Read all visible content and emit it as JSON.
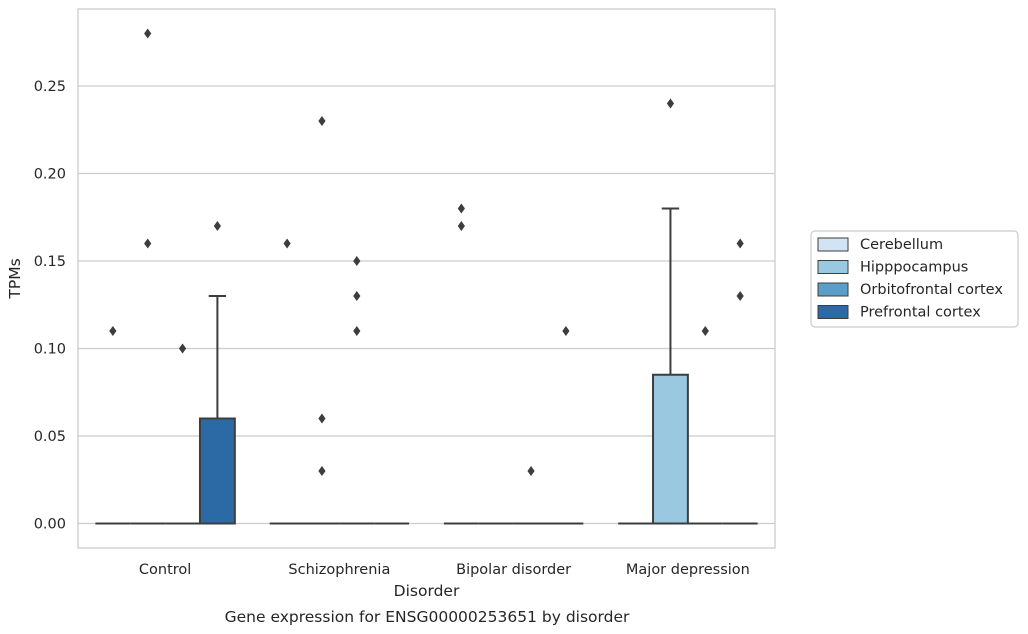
{
  "caption": "Gene expression for ENSG00000253651 by disorder",
  "chart_data": {
    "type": "box",
    "xlabel": "Disorder",
    "ylabel": "TPMs",
    "ylim": [
      -0.014,
      0.294
    ],
    "yticks": [
      0.0,
      0.05,
      0.1,
      0.15,
      0.2,
      0.25
    ],
    "ytick_labels": [
      "0.00",
      "0.05",
      "0.10",
      "0.15",
      "0.20",
      "0.25"
    ],
    "grid": true,
    "legend_position": "right",
    "categories": [
      "Control",
      "Schizophrenia",
      "Bipolar disorder",
      "Major depression"
    ],
    "series": [
      {
        "name": "Cerebellum",
        "color": "#d2e3f3",
        "boxes": [
          {
            "q1": 0,
            "median": 0,
            "q3": 0,
            "whisker_low": 0,
            "whisker_high": 0,
            "outliers": [
              0.11
            ]
          },
          {
            "q1": 0,
            "median": 0,
            "q3": 0,
            "whisker_low": 0,
            "whisker_high": 0,
            "outliers": [
              0.16
            ]
          },
          {
            "q1": 0,
            "median": 0,
            "q3": 0,
            "whisker_low": 0,
            "whisker_high": 0,
            "outliers": [
              0.17,
              0.18
            ]
          },
          {
            "q1": 0,
            "median": 0,
            "q3": 0,
            "whisker_low": 0,
            "whisker_high": 0,
            "outliers": []
          }
        ]
      },
      {
        "name": "Hipppocampus",
        "color": "#9ac8e0",
        "boxes": [
          {
            "q1": 0,
            "median": 0,
            "q3": 0,
            "whisker_low": 0,
            "whisker_high": 0,
            "outliers": [
              0.16,
              0.28
            ]
          },
          {
            "q1": 0,
            "median": 0,
            "q3": 0,
            "whisker_low": 0,
            "whisker_high": 0,
            "outliers": [
              0.03,
              0.06,
              0.23
            ]
          },
          {
            "q1": 0,
            "median": 0,
            "q3": 0,
            "whisker_low": 0,
            "whisker_high": 0,
            "outliers": []
          },
          {
            "q1": 0,
            "median": 0,
            "q3": 0.085,
            "whisker_low": 0,
            "whisker_high": 0.18,
            "outliers": [
              0.24
            ]
          }
        ]
      },
      {
        "name": "Orbitofrontal cortex",
        "color": "#5a9ec9",
        "boxes": [
          {
            "q1": 0,
            "median": 0,
            "q3": 0,
            "whisker_low": 0,
            "whisker_high": 0,
            "outliers": [
              0.1
            ]
          },
          {
            "q1": 0,
            "median": 0,
            "q3": 0,
            "whisker_low": 0,
            "whisker_high": 0,
            "outliers": [
              0.11,
              0.13,
              0.15
            ]
          },
          {
            "q1": 0,
            "median": 0,
            "q3": 0,
            "whisker_low": 0,
            "whisker_high": 0,
            "outliers": [
              0.03
            ]
          },
          {
            "q1": 0,
            "median": 0,
            "q3": 0,
            "whisker_low": 0,
            "whisker_high": 0,
            "outliers": [
              0.11
            ]
          }
        ]
      },
      {
        "name": "Prefrontal cortex",
        "color": "#2c6aa6",
        "boxes": [
          {
            "q1": 0,
            "median": 0,
            "q3": 0.06,
            "whisker_low": 0,
            "whisker_high": 0.13,
            "outliers": [
              0.17
            ]
          },
          {
            "q1": 0,
            "median": 0,
            "q3": 0,
            "whisker_low": 0,
            "whisker_high": 0,
            "outliers": []
          },
          {
            "q1": 0,
            "median": 0,
            "q3": 0,
            "whisker_low": 0,
            "whisker_high": 0,
            "outliers": [
              0.11
            ]
          },
          {
            "q1": 0,
            "median": 0,
            "q3": 0,
            "whisker_low": 0,
            "whisker_high": 0,
            "outliers": [
              0.13,
              0.16
            ]
          }
        ]
      }
    ]
  }
}
